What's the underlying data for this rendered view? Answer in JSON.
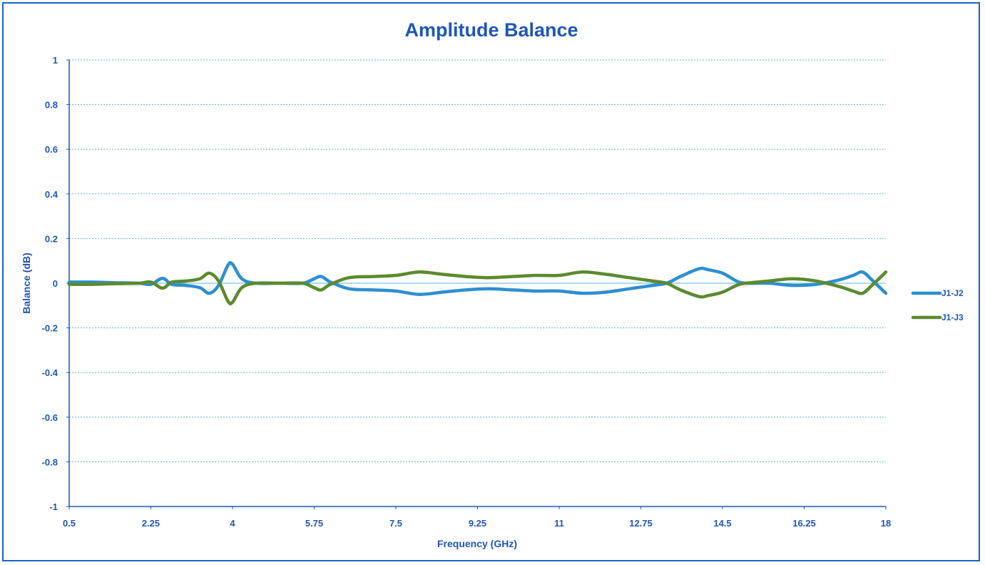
{
  "chart_data": {
    "type": "line",
    "title": "Amplitude Balance",
    "xlabel": "Frequency (GHz)",
    "ylabel": "Balance (dB)",
    "xlim": [
      0.5,
      18
    ],
    "ylim": [
      -1,
      1
    ],
    "x_ticks": [
      "0.5",
      "2.25",
      "4",
      "5.75",
      "7.5",
      "9.25",
      "11",
      "12.75",
      "14.5",
      "16.25",
      "18"
    ],
    "y_ticks": [
      "1",
      "0.8",
      "0.6",
      "0.4",
      "0.2",
      "0",
      "-0.2",
      "-0.4",
      "-0.6",
      "-0.8",
      "-1"
    ],
    "grid": "horizontal dashed",
    "legend_position": "right",
    "series": [
      {
        "name": "J1-J2",
        "color": "#2d8fd0",
        "points": [
          [
            0.5,
            0.005
          ],
          [
            1.0,
            0.005
          ],
          [
            1.5,
            0.002
          ],
          [
            2.0,
            0.0
          ],
          [
            2.25,
            -0.005
          ],
          [
            2.5,
            0.022
          ],
          [
            2.7,
            -0.005
          ],
          [
            3.0,
            -0.01
          ],
          [
            3.3,
            -0.02
          ],
          [
            3.5,
            -0.045
          ],
          [
            3.7,
            -0.01
          ],
          [
            3.9,
            0.08
          ],
          [
            4.0,
            0.085
          ],
          [
            4.2,
            0.02
          ],
          [
            4.5,
            0.0
          ],
          [
            5.0,
            0.0
          ],
          [
            5.5,
            0.0
          ],
          [
            5.75,
            0.02
          ],
          [
            5.9,
            0.03
          ],
          [
            6.1,
            0.005
          ],
          [
            6.5,
            -0.025
          ],
          [
            7.0,
            -0.03
          ],
          [
            7.5,
            -0.035
          ],
          [
            8.0,
            -0.05
          ],
          [
            8.5,
            -0.04
          ],
          [
            9.0,
            -0.03
          ],
          [
            9.5,
            -0.025
          ],
          [
            10.0,
            -0.03
          ],
          [
            10.5,
            -0.035
          ],
          [
            11.0,
            -0.035
          ],
          [
            11.5,
            -0.045
          ],
          [
            12.0,
            -0.04
          ],
          [
            12.5,
            -0.025
          ],
          [
            13.0,
            -0.01
          ],
          [
            13.3,
            0.0
          ],
          [
            13.6,
            0.03
          ],
          [
            14.0,
            0.065
          ],
          [
            14.2,
            0.06
          ],
          [
            14.5,
            0.045
          ],
          [
            14.8,
            0.01
          ],
          [
            15.0,
            0.0
          ],
          [
            15.5,
            0.0
          ],
          [
            16.0,
            -0.01
          ],
          [
            16.5,
            -0.005
          ],
          [
            17.0,
            0.015
          ],
          [
            17.3,
            0.035
          ],
          [
            17.5,
            0.05
          ],
          [
            17.7,
            0.015
          ],
          [
            18.0,
            -0.045
          ]
        ]
      },
      {
        "name": "J1-J3",
        "color": "#5c8a2e",
        "points": [
          [
            0.5,
            -0.005
          ],
          [
            1.0,
            -0.005
          ],
          [
            1.5,
            -0.002
          ],
          [
            2.0,
            0.0
          ],
          [
            2.25,
            0.005
          ],
          [
            2.5,
            -0.022
          ],
          [
            2.7,
            0.005
          ],
          [
            3.0,
            0.01
          ],
          [
            3.3,
            0.02
          ],
          [
            3.5,
            0.045
          ],
          [
            3.7,
            0.01
          ],
          [
            3.9,
            -0.08
          ],
          [
            4.0,
            -0.085
          ],
          [
            4.2,
            -0.02
          ],
          [
            4.5,
            0.0
          ],
          [
            5.0,
            0.0
          ],
          [
            5.5,
            0.0
          ],
          [
            5.75,
            -0.02
          ],
          [
            5.9,
            -0.03
          ],
          [
            6.1,
            -0.005
          ],
          [
            6.5,
            0.025
          ],
          [
            7.0,
            0.03
          ],
          [
            7.5,
            0.035
          ],
          [
            8.0,
            0.05
          ],
          [
            8.5,
            0.04
          ],
          [
            9.0,
            0.03
          ],
          [
            9.5,
            0.025
          ],
          [
            10.0,
            0.03
          ],
          [
            10.5,
            0.035
          ],
          [
            11.0,
            0.035
          ],
          [
            11.5,
            0.05
          ],
          [
            12.0,
            0.04
          ],
          [
            12.5,
            0.025
          ],
          [
            13.0,
            0.01
          ],
          [
            13.3,
            0.0
          ],
          [
            13.6,
            -0.03
          ],
          [
            14.0,
            -0.06
          ],
          [
            14.2,
            -0.055
          ],
          [
            14.5,
            -0.04
          ],
          [
            14.8,
            -0.01
          ],
          [
            15.0,
            0.0
          ],
          [
            15.5,
            0.01
          ],
          [
            16.0,
            0.02
          ],
          [
            16.5,
            0.01
          ],
          [
            17.0,
            -0.015
          ],
          [
            17.3,
            -0.035
          ],
          [
            17.5,
            -0.045
          ],
          [
            17.7,
            -0.01
          ],
          [
            18.0,
            0.05
          ]
        ]
      }
    ]
  }
}
